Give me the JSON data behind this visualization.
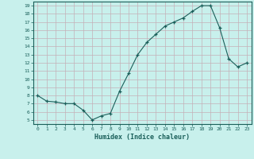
{
  "x": [
    0,
    1,
    2,
    3,
    4,
    5,
    6,
    7,
    8,
    9,
    10,
    11,
    12,
    13,
    14,
    15,
    16,
    17,
    18,
    19,
    20,
    21,
    22,
    23
  ],
  "y": [
    8.0,
    7.3,
    7.2,
    7.0,
    7.0,
    6.2,
    5.0,
    5.5,
    5.8,
    8.5,
    10.7,
    13.0,
    14.5,
    15.5,
    16.5,
    17.0,
    17.5,
    18.3,
    19.0,
    19.0,
    16.3,
    12.5,
    11.5,
    12.0
  ],
  "xlabel": "Humidex (Indice chaleur)",
  "xlim": [
    -0.5,
    23.5
  ],
  "ylim": [
    4.5,
    19.5
  ],
  "yticks": [
    5,
    6,
    7,
    8,
    9,
    10,
    11,
    12,
    13,
    14,
    15,
    16,
    17,
    18,
    19
  ],
  "xticks": [
    0,
    1,
    2,
    3,
    4,
    5,
    6,
    7,
    8,
    9,
    10,
    11,
    12,
    13,
    14,
    15,
    16,
    17,
    18,
    19,
    20,
    21,
    22,
    23
  ],
  "line_color": "#1a5f5a",
  "marker_color": "#1a5f5a",
  "bg_color": "#c8f0ec",
  "grid_color": "#c4b0b8",
  "tick_label_color": "#1a5f5a",
  "xlabel_color": "#1a5f5a",
  "border_color": "#1a5f5a"
}
